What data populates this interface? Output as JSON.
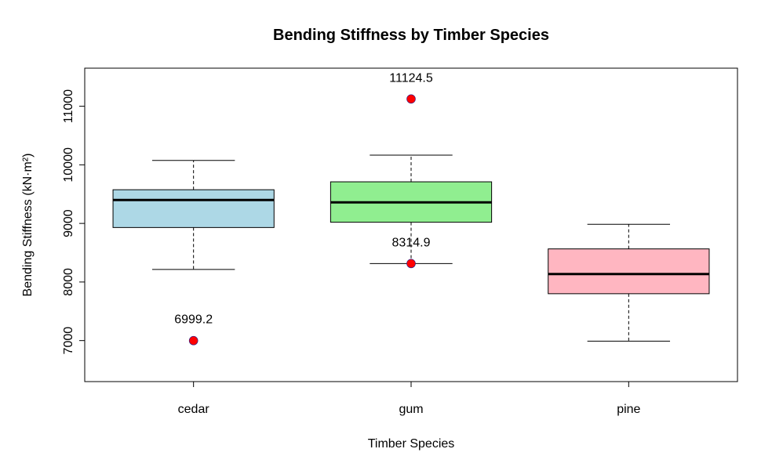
{
  "chart_data": {
    "type": "box",
    "title": "Bending Stiffness by Timber Species",
    "xlabel": "Timber Species",
    "ylabel": "Bending Stiffness (kN·m²)",
    "ylim": [
      6300,
      11650
    ],
    "yticks": [
      7000,
      8000,
      9000,
      10000,
      11000
    ],
    "grid": false,
    "categories": [
      "cedar",
      "gum",
      "pine"
    ],
    "boxes": [
      {
        "category": "cedar",
        "whisker_low": 8215,
        "q1": 8930,
        "median": 9400,
        "q3": 9575,
        "whisker_high": 10075,
        "outliers": [
          6999.2
        ],
        "outlier_labels": [
          "6999.2"
        ],
        "color": "#add8e6"
      },
      {
        "category": "gum",
        "whisker_low": 8314.9,
        "q1": 9020,
        "median": 9360,
        "q3": 9710,
        "whisker_high": 10165,
        "outliers": [
          11124.5,
          8314.9
        ],
        "outlier_labels": [
          "11124.5",
          "8314.9"
        ],
        "color": "#90ee90"
      },
      {
        "category": "pine",
        "whisker_low": 6990,
        "q1": 7800,
        "median": 8135,
        "q3": 8565,
        "whisker_high": 8985,
        "outliers": [],
        "outlier_labels": [],
        "color": "#ffb6c1"
      }
    ],
    "outlier_color": "#ff0000"
  }
}
